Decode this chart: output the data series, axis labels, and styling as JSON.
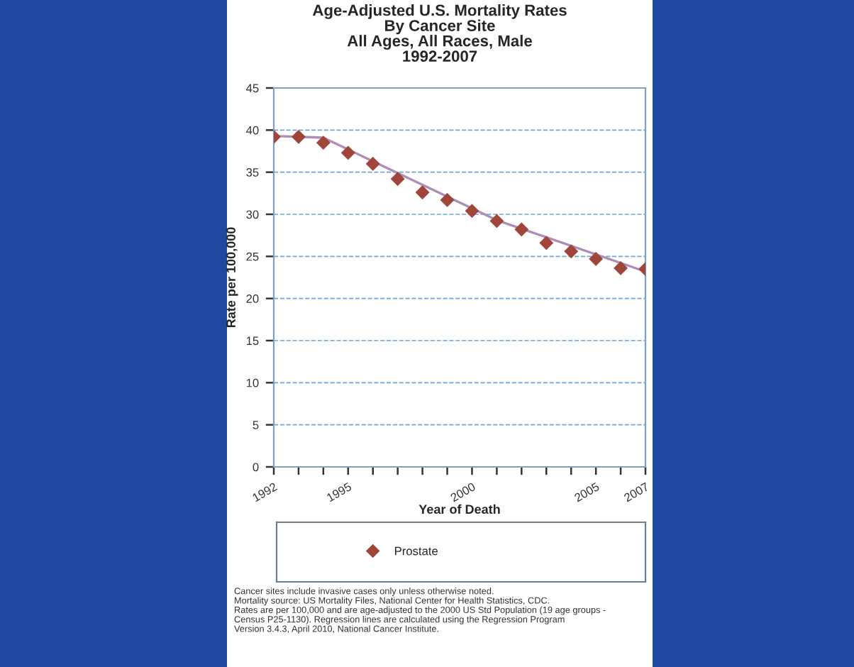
{
  "chart_data": {
    "type": "line",
    "title": "Age-Adjusted U.S. Mortality Rates\nBy Cancer Site\nAll Ages, All Races, Male\n1992-2007",
    "xlabel": "Year of Death",
    "ylabel": "Rate per 100,000",
    "x": [
      1992,
      1993,
      1994,
      1995,
      1996,
      1997,
      1998,
      1999,
      2000,
      2001,
      2002,
      2003,
      2004,
      2005,
      2006,
      2007
    ],
    "series": [
      {
        "name": "Prostate",
        "color": "#a0453a",
        "type": "scatter",
        "marker": "diamond",
        "values": [
          39.2,
          39.2,
          38.5,
          37.3,
          36.0,
          34.2,
          32.6,
          31.7,
          30.4,
          29.2,
          28.2,
          26.6,
          25.6,
          24.7,
          23.6,
          23.5
        ]
      },
      {
        "color": "#b08cb8",
        "line_style": "solid",
        "x": [
          1992,
          1994,
          2001,
          2007
        ],
        "values": [
          39.3,
          39.1,
          29.3,
          23.2
        ]
      }
    ],
    "xlim": [
      1992,
      2007
    ],
    "xticks": [
      1992,
      {
        "value": 1993,
        "label": null
      },
      {
        "value": 1994,
        "label": null
      },
      1995,
      {
        "value": 1996,
        "label": null
      },
      {
        "value": 1997,
        "label": null
      },
      {
        "value": 1998,
        "label": null
      },
      {
        "value": 1999,
        "label": null
      },
      2000,
      {
        "value": 2001,
        "label": null
      },
      {
        "value": 2002,
        "label": null
      },
      {
        "value": 2003,
        "label": null
      },
      {
        "value": 2004,
        "label": null
      },
      2005,
      {
        "value": 2006,
        "label": null
      },
      2007
    ],
    "ylim": [
      0,
      45
    ],
    "yticks": [
      0,
      5,
      10,
      15,
      20,
      25,
      30,
      35,
      40,
      45
    ],
    "grid": "y",
    "legend": "bottom",
    "annotations": [
      "Cancer sites include invasive cases only unless otherwise noted.\nMortality source: US Mortality Files, National Center for Health Statistics, CDC.\nRates are per 100,000 and are age-adjusted to the 2000 US Std Population (19 age groups -\nCensus P25-1130). Regression lines are calculated using the Regression Program\nVersion 3.4.3, April 2010, National Cancer Institute."
    ]
  }
}
